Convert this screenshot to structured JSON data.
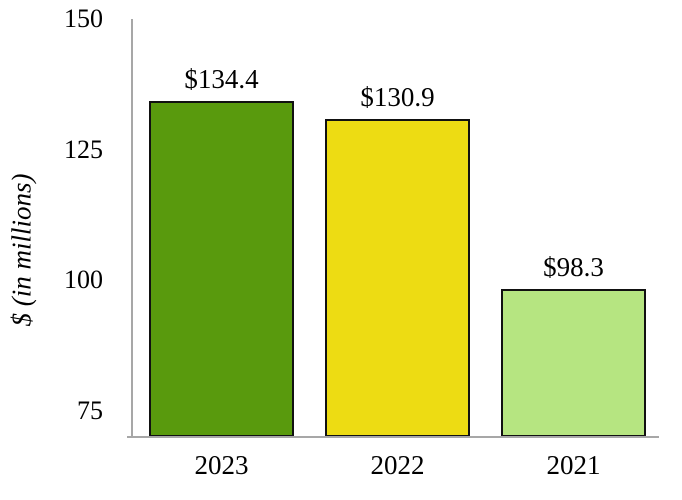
{
  "chart_data": {
    "type": "bar",
    "title": "",
    "ylabel": "$ (in millions)",
    "xlabel": "",
    "categories": [
      "2023",
      "2022",
      "2021"
    ],
    "values": [
      134.4,
      130.9,
      98.3
    ],
    "value_labels": [
      "$134.4",
      "$130.9",
      "$98.3"
    ],
    "bar_colors": [
      "#599A0D",
      "#EDDC13",
      "#B6E581"
    ],
    "bar_border_color": "#111111",
    "axis_line_color": "#A7A7A7",
    "text_color": "#000000",
    "background_color": "#FFFFFF",
    "yticks": [
      150,
      125,
      100,
      75
    ],
    "ylim": [
      70,
      150
    ],
    "grid": false,
    "legend": false
  }
}
